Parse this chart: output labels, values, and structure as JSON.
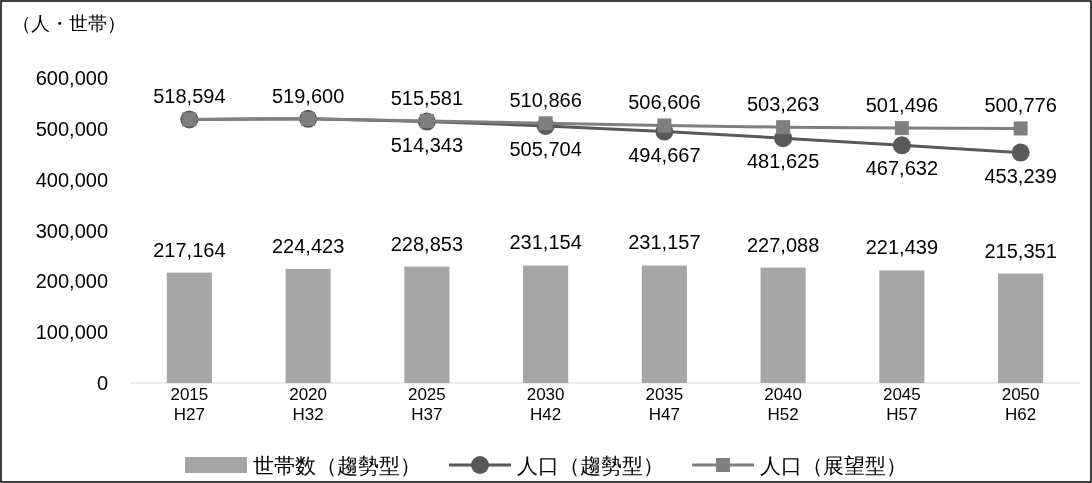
{
  "chart_data": {
    "type": "bar",
    "ylabel": "（人・世帯）",
    "categories": [
      "2015\nH27",
      "2020\nH32",
      "2025\nH37",
      "2030\nH42",
      "2035\nH47",
      "2040\nH52",
      "2045\nH57",
      "2050\nH62"
    ],
    "series": [
      {
        "name": "世帯数（趨勢型）",
        "color": "#a6a6a6",
        "values": [
          217164,
          224423,
          228853,
          231154,
          231157,
          227088,
          221439,
          215351
        ],
        "value_labels": [
          "217,164",
          "224,423",
          "228,853",
          "231,154",
          "231,157",
          "227,088",
          "221,439",
          "215,351"
        ]
      },
      {
        "name": "人口（趨勢型）",
        "type": "line",
        "marker": "circle",
        "color": "#595959",
        "values": [
          518594,
          519600,
          514343,
          505704,
          494667,
          481625,
          467632,
          453239
        ],
        "value_labels": [
          null,
          null,
          "514,343",
          "505,704",
          "494,667",
          "481,625",
          "467,632",
          "453,239"
        ]
      },
      {
        "name": "人口（展望型）",
        "type": "line",
        "marker": "square",
        "color": "#7f7f7f",
        "values": [
          518594,
          519600,
          515581,
          510866,
          506606,
          503263,
          501496,
          500776
        ],
        "value_labels": [
          "518,594",
          "519,600",
          "515,581",
          "510,866",
          "506,606",
          "503,263",
          "501,496",
          "500,776"
        ]
      }
    ],
    "ylim": [
      0,
      600000
    ],
    "yticks": [
      0,
      {
        "value": 100000,
        "label": "100,000"
      },
      {
        "value": 200000,
        "label": "200,000"
      },
      {
        "value": 300000,
        "label": "300,000"
      },
      {
        "value": 400000,
        "label": "400,000"
      },
      {
        "value": 500000,
        "label": "500,000"
      },
      {
        "value": 600000,
        "label": "600,000"
      }
    ],
    "data_labels": true,
    "legend": "bottom",
    "grid": false
  }
}
